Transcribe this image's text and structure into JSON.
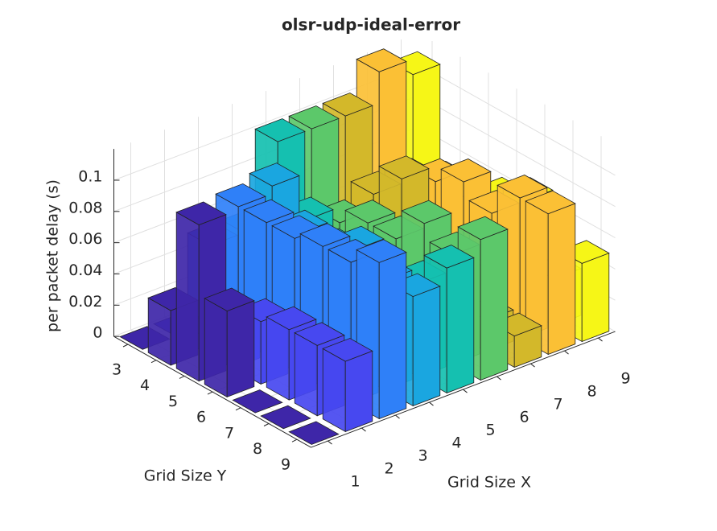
{
  "chart_data": {
    "type": "bar3",
    "title": "olsr-udp-ideal-error",
    "xlabel": "Grid Size X",
    "ylabel": "Grid Size Y",
    "zlabel": "per packet delay (s)",
    "x": [
      1,
      2,
      3,
      4,
      5,
      6,
      7,
      8,
      9
    ],
    "y": [
      3,
      4,
      5,
      6,
      7,
      8,
      9
    ],
    "values": [
      [
        0,
        0.035,
        0.1,
        0.055,
        0,
        0,
        0
      ],
      [
        0,
        0.01,
        0.03,
        0.04,
        0.045,
        0.045,
        0.045
      ],
      [
        0.05,
        0.085,
        0.085,
        0.085,
        0.09,
        0.09,
        0.1
      ],
      [
        0.05,
        0.09,
        0.07,
        0.06,
        0.08,
        0.07,
        0.07
      ],
      [
        0.1,
        0.06,
        0.05,
        0.05,
        0.04,
        0.06,
        0.08
      ],
      [
        0.1,
        0.05,
        0.06,
        0.06,
        0.08,
        0.07,
        0.09
      ],
      [
        0.1,
        0.06,
        0.08,
        0.03,
        0.04,
        0.02,
        0.02
      ],
      [
        0.12,
        0.06,
        0.07,
        0.08,
        0.07,
        0.09,
        0.09
      ],
      [
        0.11,
        0.05,
        0.05,
        0.06,
        0.07,
        0.03,
        0.05
      ]
    ],
    "colors": [
      "#3e26a8",
      "#4748f0",
      "#2f80f8",
      "#1aa6e0",
      "#15c0b0",
      "#5cc86a",
      "#d3b82a",
      "#fbc035",
      "#f6f617"
    ],
    "zlim": [
      0,
      0.12
    ],
    "zticks": [
      0,
      0.02,
      0.04,
      0.06,
      0.08,
      0.1
    ],
    "grid": true
  }
}
